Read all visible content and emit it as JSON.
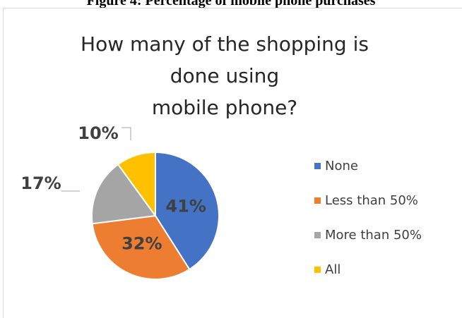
{
  "figure": {
    "caption": "Figure 4: Percentage of mobile phone purchases"
  },
  "chart_data": {
    "type": "pie",
    "title_lines": [
      "How many of the shopping is",
      "done using",
      "mobile phone?"
    ],
    "categories": [
      "None",
      "Less than 50%",
      "More than 50%",
      "All"
    ],
    "values": [
      41,
      32,
      17,
      10
    ],
    "data_labels": [
      "41%",
      "32%",
      "17%",
      "10%"
    ],
    "colors": [
      "#4472c4",
      "#ed7d31",
      "#a5a5a5",
      "#ffc000"
    ],
    "legend_position": "right",
    "start_angle_deg": 0,
    "direction": "clockwise"
  }
}
